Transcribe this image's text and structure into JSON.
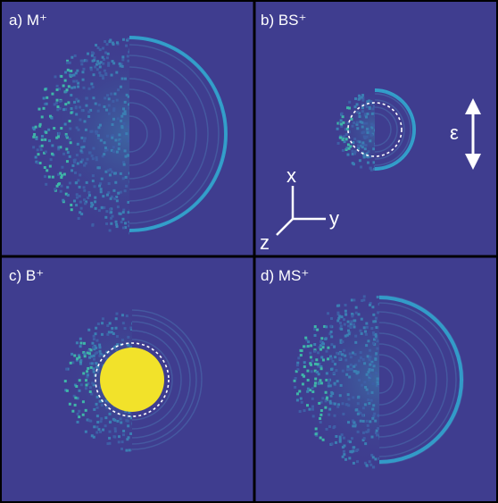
{
  "panels": [
    {
      "label": "a) M⁺"
    },
    {
      "label": "b) BS⁺"
    },
    {
      "label": "c) B⁺"
    },
    {
      "label": "d) MS⁺"
    }
  ],
  "axes": {
    "x": "x",
    "y": "y",
    "z": "z",
    "polarization": "ε"
  }
}
